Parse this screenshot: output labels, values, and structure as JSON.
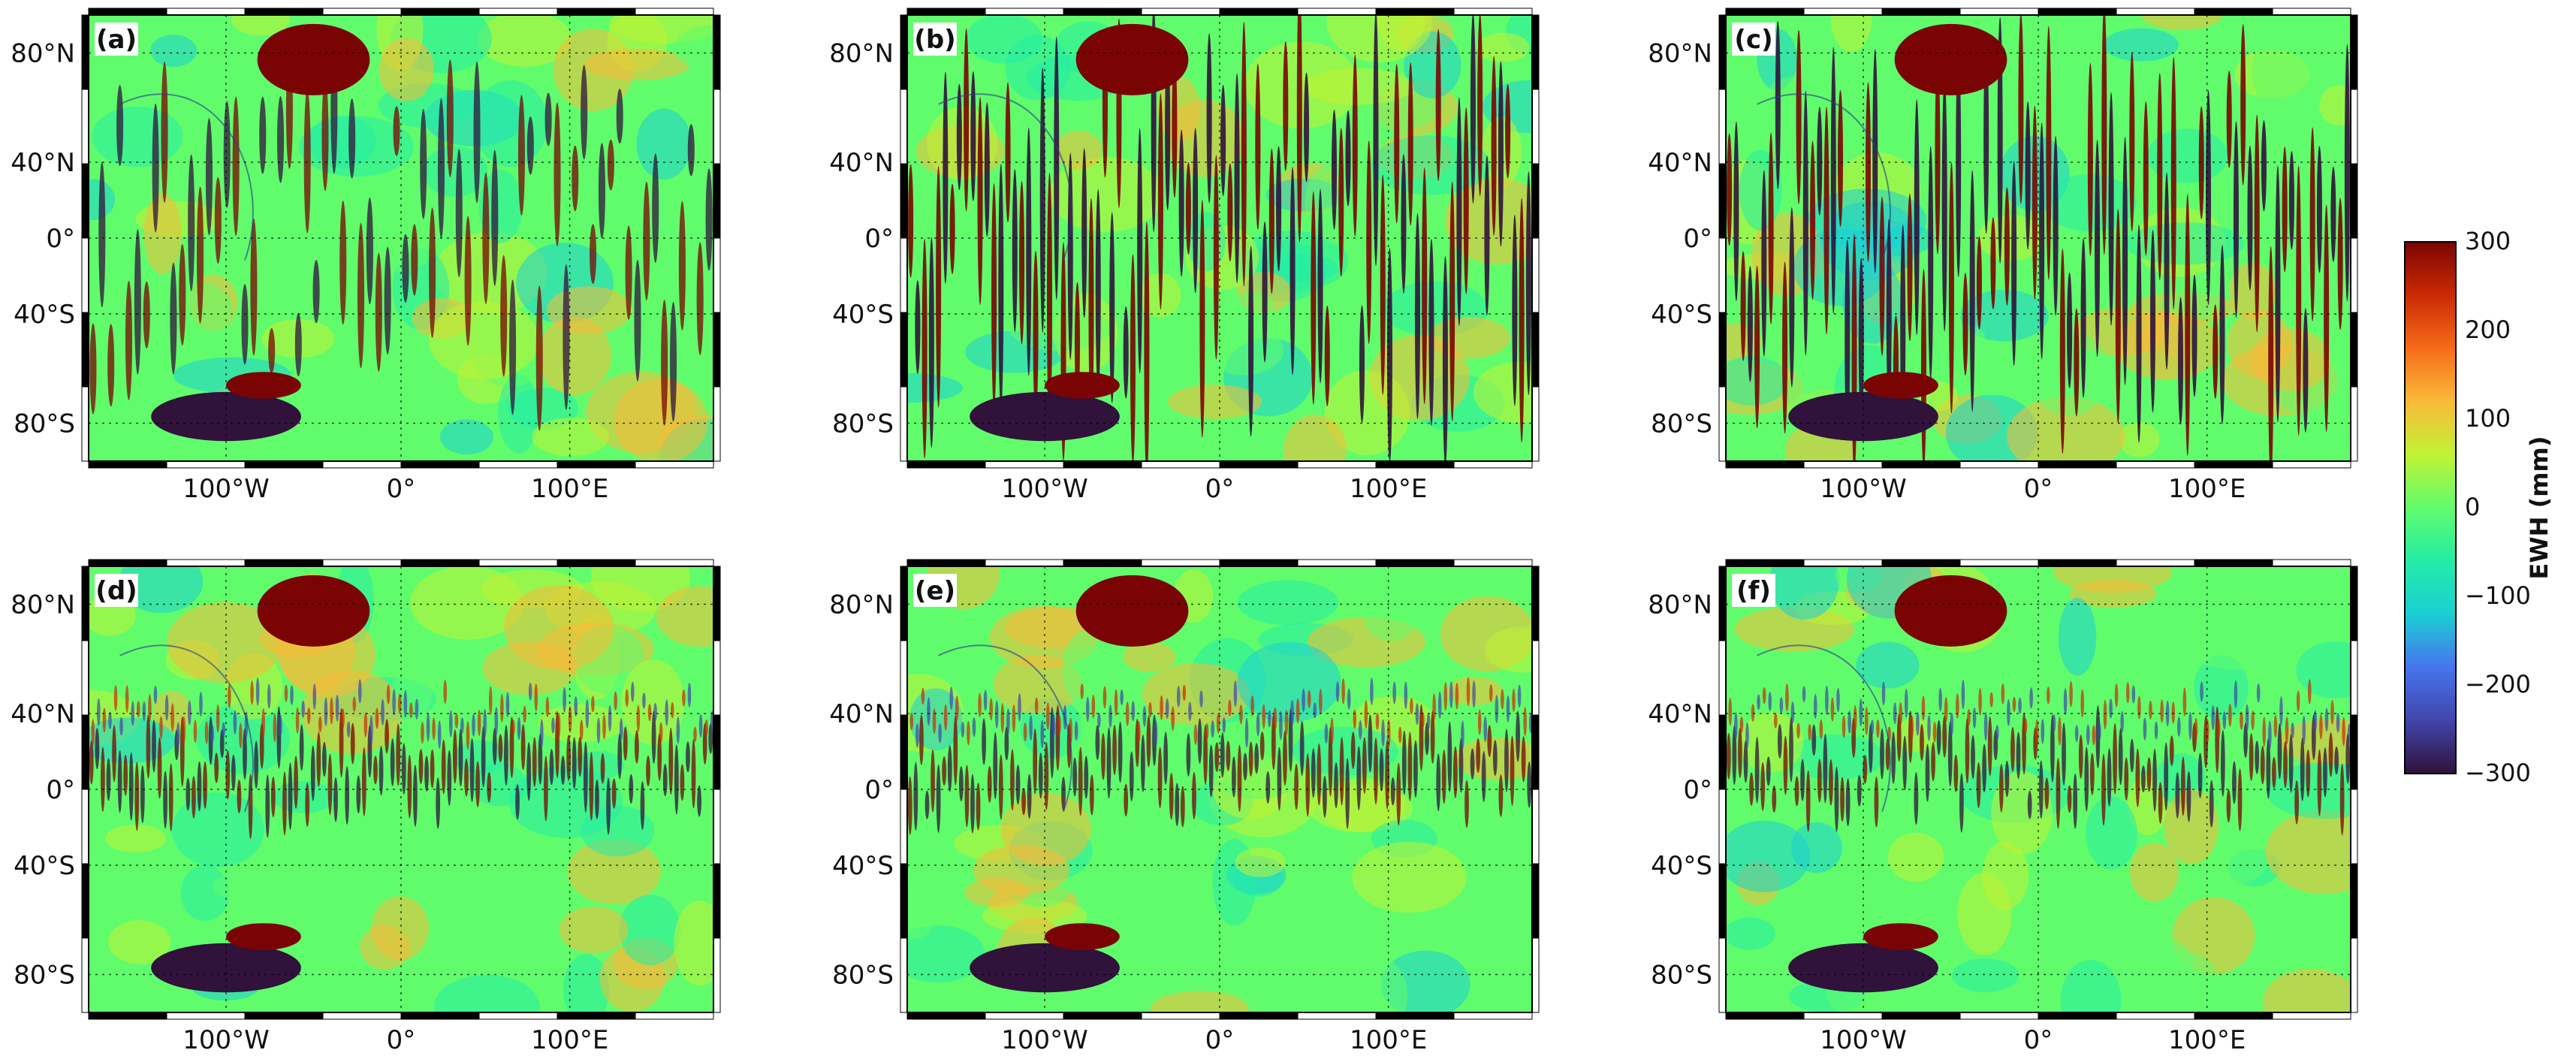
{
  "figure": {
    "panels": [
      {
        "label": "(a)",
        "pattern": "striped-weak"
      },
      {
        "label": "(b)",
        "pattern": "striped-strong"
      },
      {
        "label": "(c)",
        "pattern": "striped-strong"
      },
      {
        "label": "(d)",
        "pattern": "equatorial-bands"
      },
      {
        "label": "(e)",
        "pattern": "equatorial-bands"
      },
      {
        "label": "(f)",
        "pattern": "equatorial-bands"
      }
    ],
    "lat_ticks": [
      "80°N",
      "40°N",
      "0°",
      "40°S",
      "80°S"
    ],
    "lon_ticks": [
      "100°W",
      "0°",
      "100°E"
    ],
    "colorbar": {
      "label": "EWH (mm)",
      "ticks": [
        "300",
        "200",
        "100",
        "0",
        "−100",
        "−200",
        "−300"
      ],
      "colormap": "turbo"
    }
  }
}
